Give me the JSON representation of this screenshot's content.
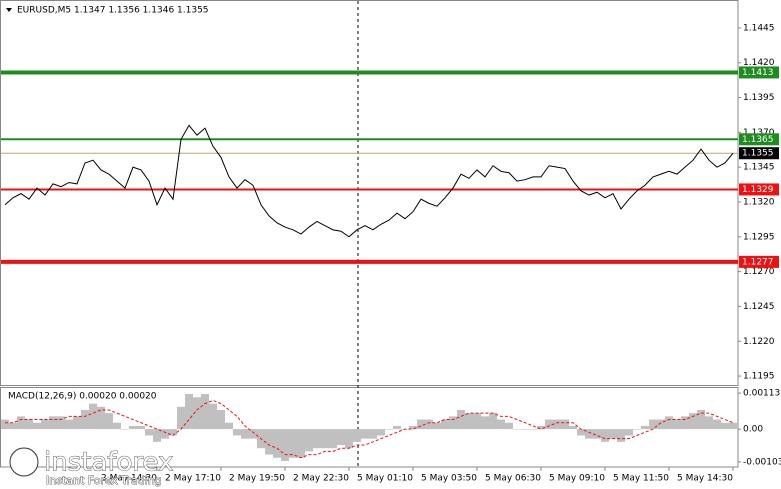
{
  "chart_data": [
    {
      "type": "line",
      "title": "EURUSD,M5  1.1347 1.1356 1.1346 1.1355",
      "color": "#000000",
      "categories": [
        null,
        null,
        null,
        null,
        null,
        null,
        null,
        null,
        null,
        null,
        null,
        null,
        null,
        null,
        null,
        null,
        null,
        null,
        null,
        "2 May 14:30",
        null,
        null,
        null,
        null,
        null,
        null,
        null,
        "2 May 17:10",
        null,
        null,
        null,
        null,
        null,
        null,
        null,
        "2 May 19:50",
        null,
        null,
        null,
        null,
        null,
        null,
        null,
        "2 May 22:30",
        null,
        null,
        null,
        null,
        null,
        null,
        null,
        "5 May 01:10",
        null,
        null,
        null,
        null,
        null,
        null,
        null,
        "5 May 03:50",
        null,
        null,
        null,
        null,
        null,
        null,
        null,
        "5 May 06:30",
        null,
        null,
        null,
        null,
        null,
        null,
        null,
        "5 May 09:10",
        null,
        null,
        null,
        null,
        null,
        null,
        null,
        "5 May 11:50",
        null,
        null,
        null,
        null,
        null,
        null,
        null,
        "5 May 14:30"
      ],
      "values": [
        1.1318,
        1.1323,
        1.1326,
        1.1322,
        1.133,
        1.1325,
        1.1333,
        1.1331,
        1.1334,
        1.1333,
        1.1348,
        1.135,
        1.1343,
        1.134,
        1.1335,
        1.133,
        1.1345,
        1.1343,
        1.1335,
        1.1318,
        1.133,
        1.1322,
        1.1365,
        1.1375,
        1.1368,
        1.1373,
        1.136,
        1.1352,
        1.1338,
        1.133,
        1.1336,
        1.1332,
        1.1318,
        1.131,
        1.1305,
        1.1302,
        1.13,
        1.1297,
        1.1302,
        1.1306,
        1.1303,
        1.13,
        1.1299,
        1.1295,
        1.13,
        1.1303,
        1.13,
        1.1304,
        1.1307,
        1.1312,
        1.1308,
        1.1313,
        1.1322,
        1.1319,
        1.1317,
        1.1323,
        1.133,
        1.134,
        1.1337,
        1.1343,
        1.1338,
        1.1346,
        1.1342,
        1.1341,
        1.1335,
        1.1336,
        1.1338,
        1.1338,
        1.1346,
        1.1345,
        1.1344,
        1.1335,
        1.1328,
        1.1325,
        1.1327,
        1.1323,
        1.1326,
        1.1315,
        1.1322,
        1.1328,
        1.1332,
        1.1338,
        1.134,
        1.1342,
        1.134,
        1.1345,
        1.135,
        1.1358,
        1.135,
        1.1345,
        1.1348,
        1.1355
      ],
      "ylim": [
        1.11886,
        1.14643
      ],
      "yticks": [
        1.1445,
        {
          "value": 1.142,
          "label": "1.1420"
        },
        1.1395,
        {
          "value": 1.137,
          "label": "1.1370"
        },
        1.1345,
        {
          "value": 1.132,
          "label": "1.1320"
        },
        1.1295,
        {
          "value": 1.127,
          "label": "1.1270"
        },
        1.1245,
        {
          "value": 1.122,
          "label": "1.1220"
        },
        1.1195
      ],
      "levels": [
        {
          "value": 1.1413,
          "color": "#1e8c1e"
        },
        {
          "value": 1.1365,
          "color": "#1e8c1e"
        },
        {
          "value": 1.1355,
          "color": "#c8a070"
        },
        {
          "value": 1.1329,
          "color": "#ee1111"
        },
        {
          "value": 1.1277,
          "color": "#ee1111"
        }
      ]
    },
    {
      "type": "bar",
      "title": "MACD(12,26,9) 0.00020 0.00020",
      "series": [
        {
          "color": "#c0c0c0",
          "values": [
            0.0003,
            0.0002,
            0.0004,
            0.0003,
            0.0002,
            0.0003,
            0.0004,
            0.0004,
            0.0003,
            0.0004,
            0.0006,
            0.0008,
            0.0007,
            0.0005,
            0.0002,
            0.0,
            0.0001,
            0.0001,
            -0.0002,
            -0.0004,
            -0.0003,
            -0.0002,
            0.0007,
            0.0011,
            0.001,
            0.0011,
            0.0008,
            0.0006,
            0.0002,
            -0.0002,
            -0.0003,
            -0.0003,
            -0.0006,
            -0.0008,
            -0.0009,
            -0.001,
            -0.0009,
            -0.0009,
            -0.0007,
            -0.0006,
            -0.0006,
            -0.0006,
            -0.0005,
            -0.0006,
            -0.0004,
            -0.0003,
            -0.0003,
            -0.0002,
            0.0,
            0.0001,
            0.0,
            0.0001,
            0.0003,
            0.0003,
            0.0002,
            0.0003,
            0.0004,
            0.0006,
            0.0005,
            0.0005,
            0.0004,
            0.0005,
            0.0003,
            0.0002,
            0.0,
            0.0,
            0.0,
            0.0001,
            0.0003,
            0.0003,
            0.0003,
            0.0001,
            -0.0002,
            -0.0003,
            -0.0003,
            -0.0004,
            -0.0003,
            -0.0004,
            -0.0002,
            0.0,
            0.0001,
            0.0003,
            0.0003,
            0.0004,
            0.0003,
            0.0004,
            0.0005,
            0.0006,
            0.0004,
            0.0003,
            0.0002,
            0.0002
          ]
        },
        {
          "color": "#ee1111",
          "values": [
            0.0002,
            0.0002,
            0.0003,
            0.0003,
            0.0003,
            0.0003,
            0.0003,
            0.0003,
            0.0004,
            0.0004,
            0.0004,
            0.0005,
            0.0006,
            0.0006,
            0.0005,
            0.0004,
            0.0003,
            0.0002,
            0.0001,
            0.0,
            -0.0001,
            -0.0002,
            0.0,
            0.0003,
            0.0006,
            0.0008,
            0.0009,
            0.0008,
            0.0006,
            0.0004,
            0.0001,
            -0.0001,
            -0.0003,
            -0.0005,
            -0.0006,
            -0.0008,
            -0.0008,
            -0.0009,
            -0.0008,
            -0.0008,
            -0.0007,
            -0.0007,
            -0.0006,
            -0.0006,
            -0.0005,
            -0.0005,
            -0.0004,
            -0.0003,
            -0.0002,
            -0.0001,
            0.0,
            0.0,
            0.0001,
            0.0002,
            0.0002,
            0.0003,
            0.0003,
            0.0004,
            0.0005,
            0.0005,
            0.0005,
            0.0005,
            0.0004,
            0.0004,
            0.0003,
            0.0002,
            0.0001,
            0.0,
            0.0001,
            0.0002,
            0.0002,
            0.0002,
            0.0,
            -0.0001,
            -0.0002,
            -0.0003,
            -0.0003,
            -0.0003,
            -0.0003,
            -0.0002,
            -0.0001,
            0.0,
            0.0002,
            0.0003,
            0.0003,
            0.0003,
            0.0004,
            0.0005,
            0.0005,
            0.0004,
            0.0003,
            0.0002
          ]
        }
      ],
      "ylim": [
        -0.00119,
        0.00129
      ],
      "yticks": [
        0.00113,
        {
          "value": 0,
          "label": "0.00"
        },
        -0.00103
      ]
    }
  ],
  "watermark": {
    "brand": "instaforex",
    "tagline": "Instant Forex Trading"
  }
}
